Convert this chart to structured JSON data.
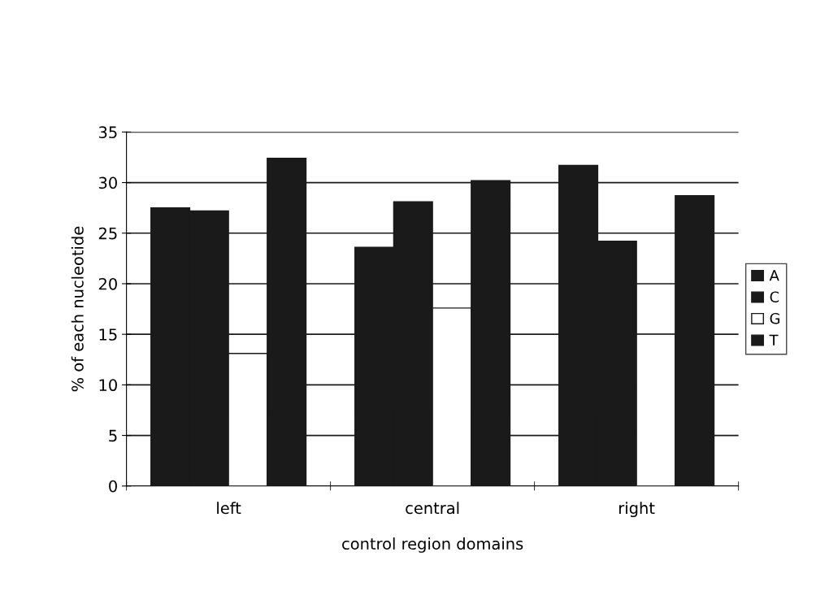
{
  "chart_data": {
    "type": "bar",
    "xlabel": "control region domains",
    "ylabel": "% of each nucleotide",
    "categories": [
      "left",
      "central",
      "right"
    ],
    "series": [
      {
        "name": "A",
        "color": "#1a1a1a",
        "values": [
          27.5,
          23.6,
          31.7
        ]
      },
      {
        "name": "C",
        "color": "#1a1a1a",
        "values": [
          27.2,
          28.1,
          24.2
        ]
      },
      {
        "name": "G",
        "color": "#ffffff",
        "values": [
          13.1,
          17.6,
          15
        ]
      },
      {
        "name": "T",
        "color": "#1a1a1a",
        "values": [
          32.4,
          30.2,
          28.7
        ]
      }
    ],
    "ylim": [
      0,
      35
    ],
    "yticks": [
      0,
      5,
      10,
      15,
      20,
      25,
      30,
      35
    ],
    "grid": "y",
    "legend": "right"
  }
}
